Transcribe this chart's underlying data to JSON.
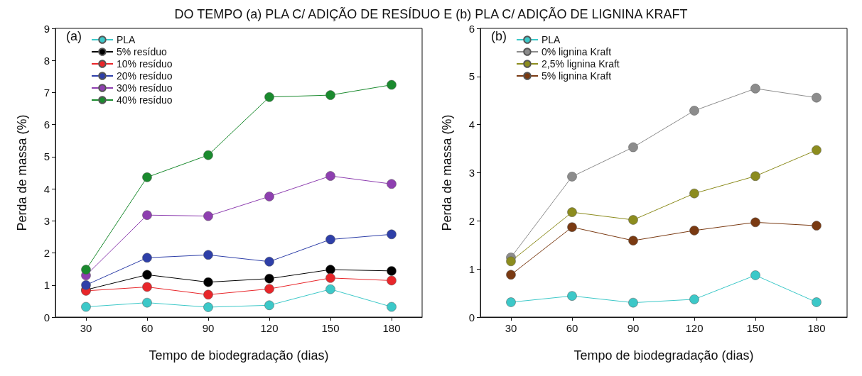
{
  "chart_data": [
    {
      "type": "line",
      "title": "DO TEMPO (a) PLA C/ ADIÇÃO DE RESÍDUO E (b) PLA C/ ADIÇÃO DE LIGNINA KRAFT",
      "xlabel": "Tempo de biodegradação (dias)",
      "ylabel": "Perda de massa (%)",
      "annotations": [
        "(a)"
      ],
      "x": [
        30,
        60,
        90,
        120,
        150,
        180
      ],
      "xlim": [
        15,
        195
      ],
      "xticks": [
        30,
        60,
        90,
        120,
        150,
        180
      ],
      "ylim": [
        0,
        9
      ],
      "yticks": [
        0,
        1,
        2,
        3,
        4,
        5,
        6,
        7,
        8,
        9
      ],
      "marker": "circle",
      "legend": "top left",
      "grid": false,
      "series": [
        {
          "name": "PLA",
          "color": "#3cc8c8",
          "values": [
            0.32,
            0.45,
            0.31,
            0.37,
            0.87,
            0.32
          ]
        },
        {
          "name": "5% resíduo",
          "color": "#000000",
          "values": [
            0.85,
            1.32,
            1.09,
            1.2,
            1.48,
            1.44
          ]
        },
        {
          "name": "10% resíduo",
          "color": "#e8262a",
          "values": [
            0.82,
            0.94,
            0.7,
            0.88,
            1.22,
            1.14
          ]
        },
        {
          "name": "20% resíduo",
          "color": "#2e3fa8",
          "values": [
            1.0,
            1.85,
            1.94,
            1.73,
            2.42,
            2.58
          ]
        },
        {
          "name": "30% resíduo",
          "color": "#8e3fb0",
          "values": [
            1.3,
            3.18,
            3.15,
            3.76,
            4.4,
            4.15
          ]
        },
        {
          "name": "40% resíduo",
          "color": "#1a8a2e",
          "values": [
            1.48,
            4.36,
            5.05,
            6.86,
            6.92,
            7.24
          ]
        }
      ]
    },
    {
      "type": "line",
      "xlabel": "Tempo de biodegradação (dias)",
      "ylabel": "Perda de massa (%)",
      "annotations": [
        "(b)"
      ],
      "x": [
        30,
        60,
        90,
        120,
        150,
        180
      ],
      "xlim": [
        15,
        195
      ],
      "xticks": [
        30,
        60,
        90,
        120,
        150,
        180
      ],
      "ylim": [
        0,
        6
      ],
      "yticks": [
        0,
        1,
        2,
        3,
        4,
        5,
        6
      ],
      "marker": "circle",
      "legend": "top left",
      "grid": false,
      "series": [
        {
          "name": "PLA",
          "color": "#3cc8c8",
          "values": [
            0.31,
            0.44,
            0.3,
            0.37,
            0.87,
            0.31
          ]
        },
        {
          "name": "0% lignina Kraft",
          "color": "#8c8c8c",
          "values": [
            1.24,
            2.92,
            3.53,
            4.29,
            4.75,
            4.56
          ]
        },
        {
          "name": "2,5% lignina Kraft",
          "color": "#8c8c1e",
          "values": [
            1.16,
            2.18,
            2.02,
            2.57,
            2.93,
            3.47
          ]
        },
        {
          "name": "5% lignina Kraft",
          "color": "#7a3a12",
          "values": [
            0.88,
            1.87,
            1.59,
            1.8,
            1.97,
            1.9
          ]
        }
      ]
    }
  ]
}
